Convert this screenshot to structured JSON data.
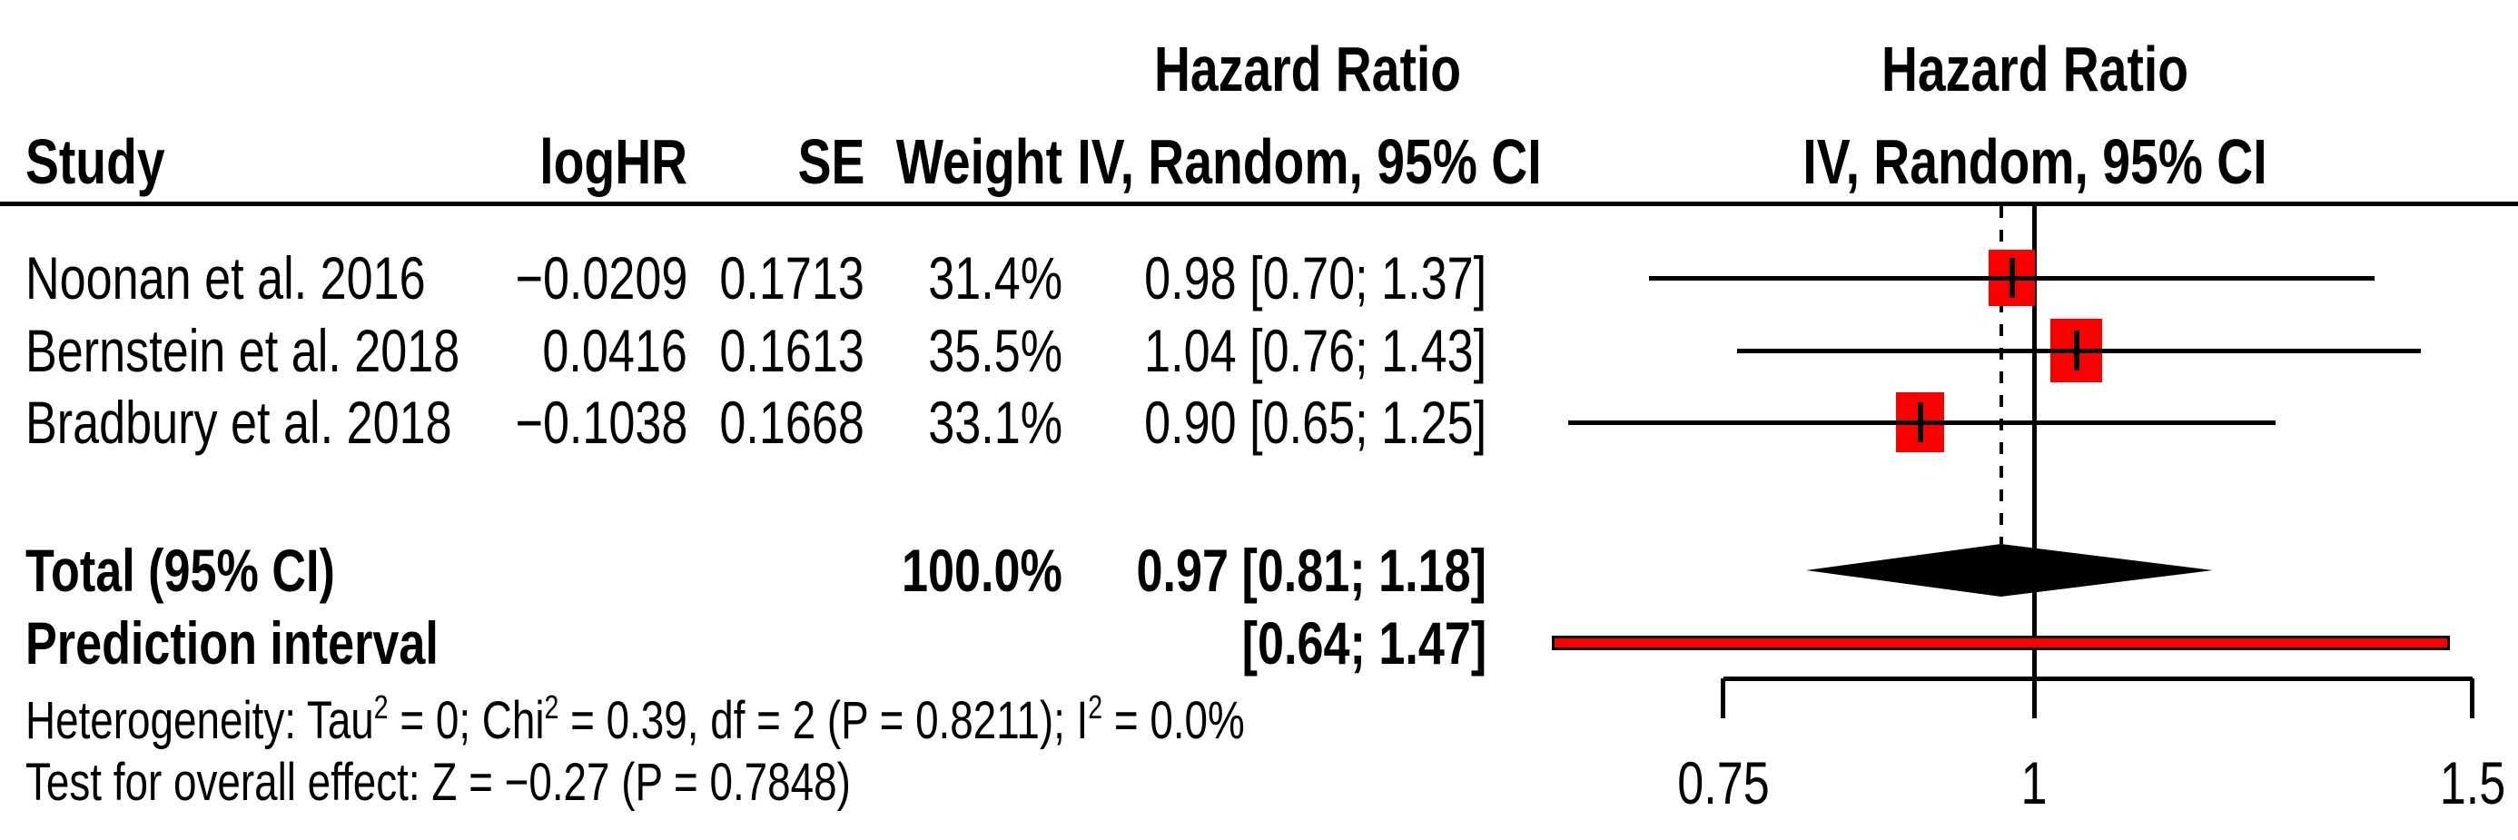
{
  "header": {
    "study": "Study",
    "loghr": "logHR",
    "se": "SE",
    "weight": "Weight",
    "effect_title": "Hazard Ratio",
    "ci_method": "IV, Random, 95% CI"
  },
  "rows": [
    {
      "study": "Noonan et al. 2016",
      "loghr": "−0.0209",
      "se": "0.1713",
      "weight": "31.4%",
      "ci_text": "0.98 [0.70; 1.37]"
    },
    {
      "study": "Bernstein et al. 2018",
      "loghr": "0.0416",
      "se": "0.1613",
      "weight": "35.5%",
      "ci_text": "1.04 [0.76; 1.43]"
    },
    {
      "study": "Bradbury et al. 2018",
      "loghr": "−0.1038",
      "se": "0.1668",
      "weight": "33.1%",
      "ci_text": "0.90 [0.65; 1.25]"
    }
  ],
  "total_row": {
    "label": "Total (95% CI)",
    "weight": "100.0%",
    "ci_text": "0.97 [0.81; 1.18]"
  },
  "prediction_row": {
    "label": "Prediction interval",
    "ci_text": "[0.64; 1.47]"
  },
  "footnotes": {
    "heterogeneity_segments": [
      {
        "text": "Heterogeneity: Tau"
      },
      {
        "text": "2",
        "sup": true
      },
      {
        "text": " = 0; Chi"
      },
      {
        "text": "2",
        "sup": true
      },
      {
        "text": " = 0.39, df = 2 (P = 0.8211); I"
      },
      {
        "text": "2",
        "sup": true
      },
      {
        "text": " = 0.0%"
      }
    ],
    "overall_effect": "Test for overall effect: Z = −0.27 (P = 0.7848)"
  },
  "chart_data": {
    "type": "forest",
    "x_scale": "log",
    "effect_measure": "Hazard Ratio",
    "model": "IV, Random, 95% CI",
    "axis": {
      "ticks": [
        0.75,
        1,
        1.5
      ],
      "tick_labels": [
        "0.75",
        "1",
        "1.5"
      ],
      "reference_line": 1
    },
    "studies": [
      {
        "name": "Noonan et al. 2016",
        "hr": 0.98,
        "low": 0.7,
        "high": 1.37,
        "weight": 31.4
      },
      {
        "name": "Bernstein et al. 2018",
        "hr": 1.04,
        "low": 0.76,
        "high": 1.43,
        "weight": 35.5
      },
      {
        "name": "Bradbury et al. 2018",
        "hr": 0.9,
        "low": 0.65,
        "high": 1.25,
        "weight": 33.1
      }
    ],
    "total": {
      "hr": 0.97,
      "low": 0.81,
      "high": 1.18
    },
    "prediction": {
      "low": 0.64,
      "high": 1.47
    },
    "heterogeneity": {
      "tau2": 0,
      "chi2": 0.39,
      "df": 2,
      "p": 0.8211,
      "i2_pct": 0.0
    },
    "overall_effect_test": {
      "z": -0.27,
      "p": 0.7848
    },
    "colors": {
      "square": "#FA0000",
      "diamond": "#000000",
      "prediction_fill": "#FA0000",
      "line": "#000000"
    }
  }
}
